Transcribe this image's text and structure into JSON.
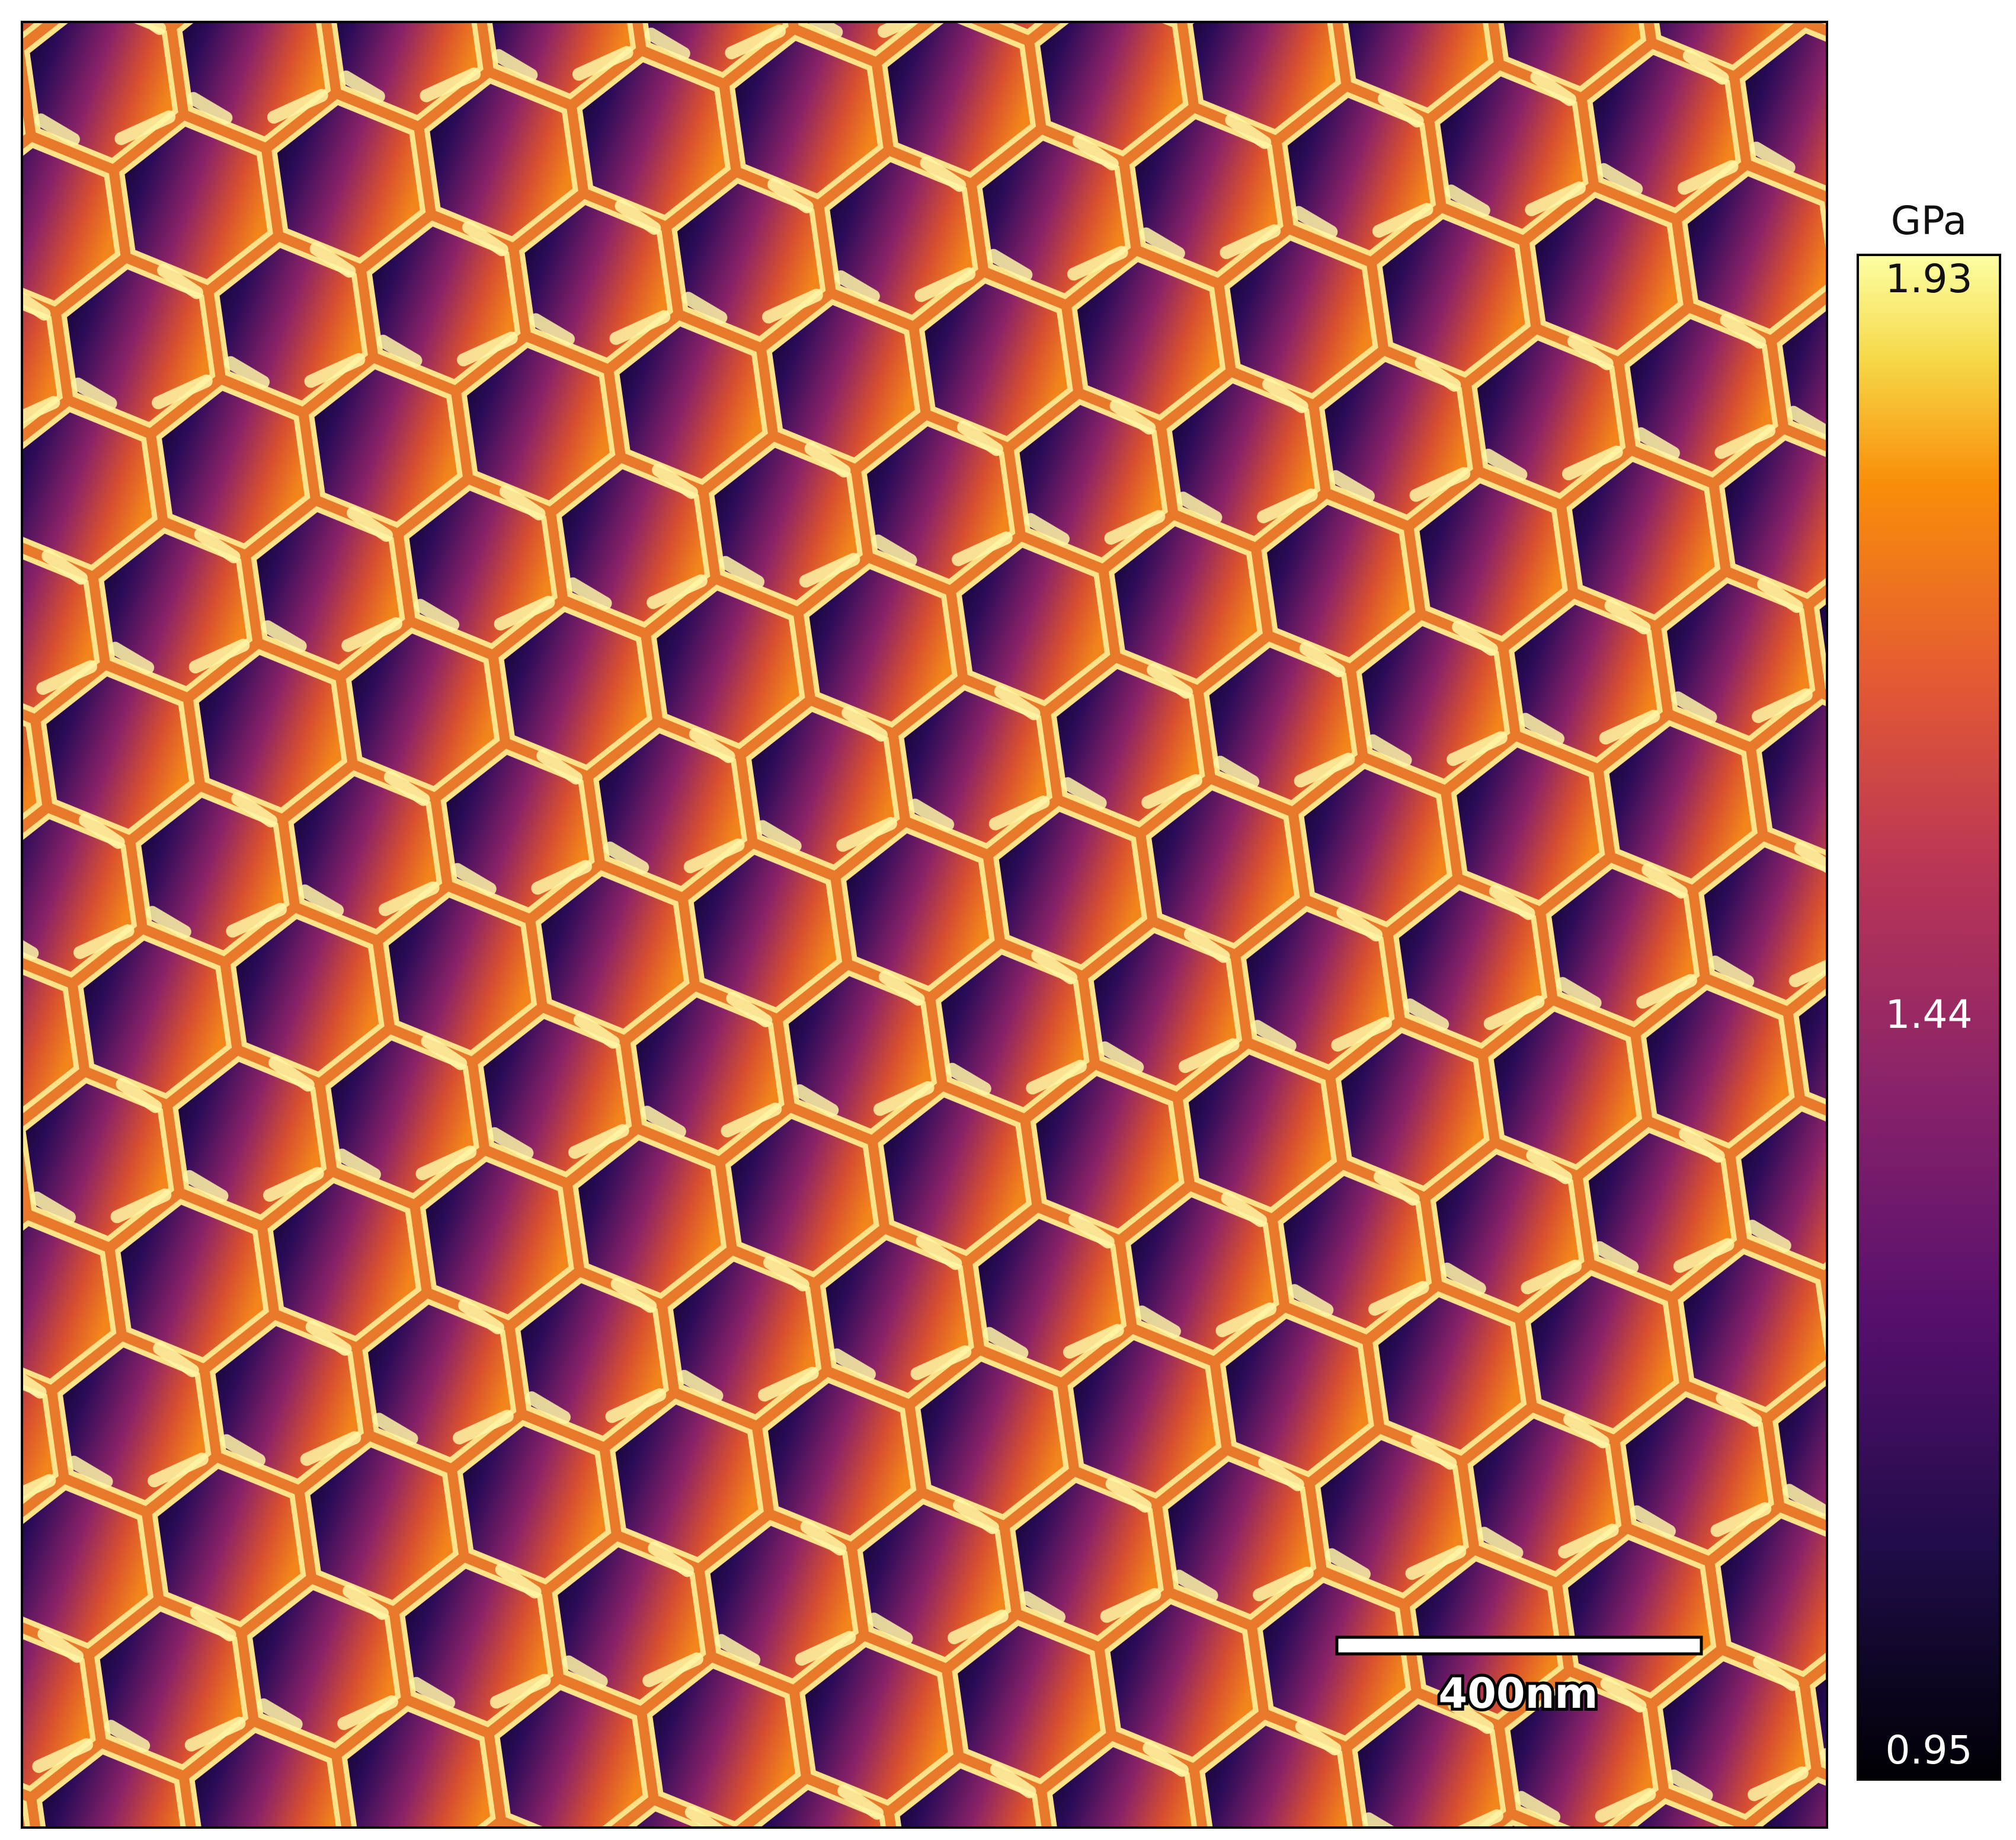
{
  "image": {
    "scale_bar": {
      "label": "400nm"
    }
  },
  "colorbar": {
    "unit": "GPa",
    "ticks": [
      1.93,
      1.44,
      0.95
    ]
  }
}
